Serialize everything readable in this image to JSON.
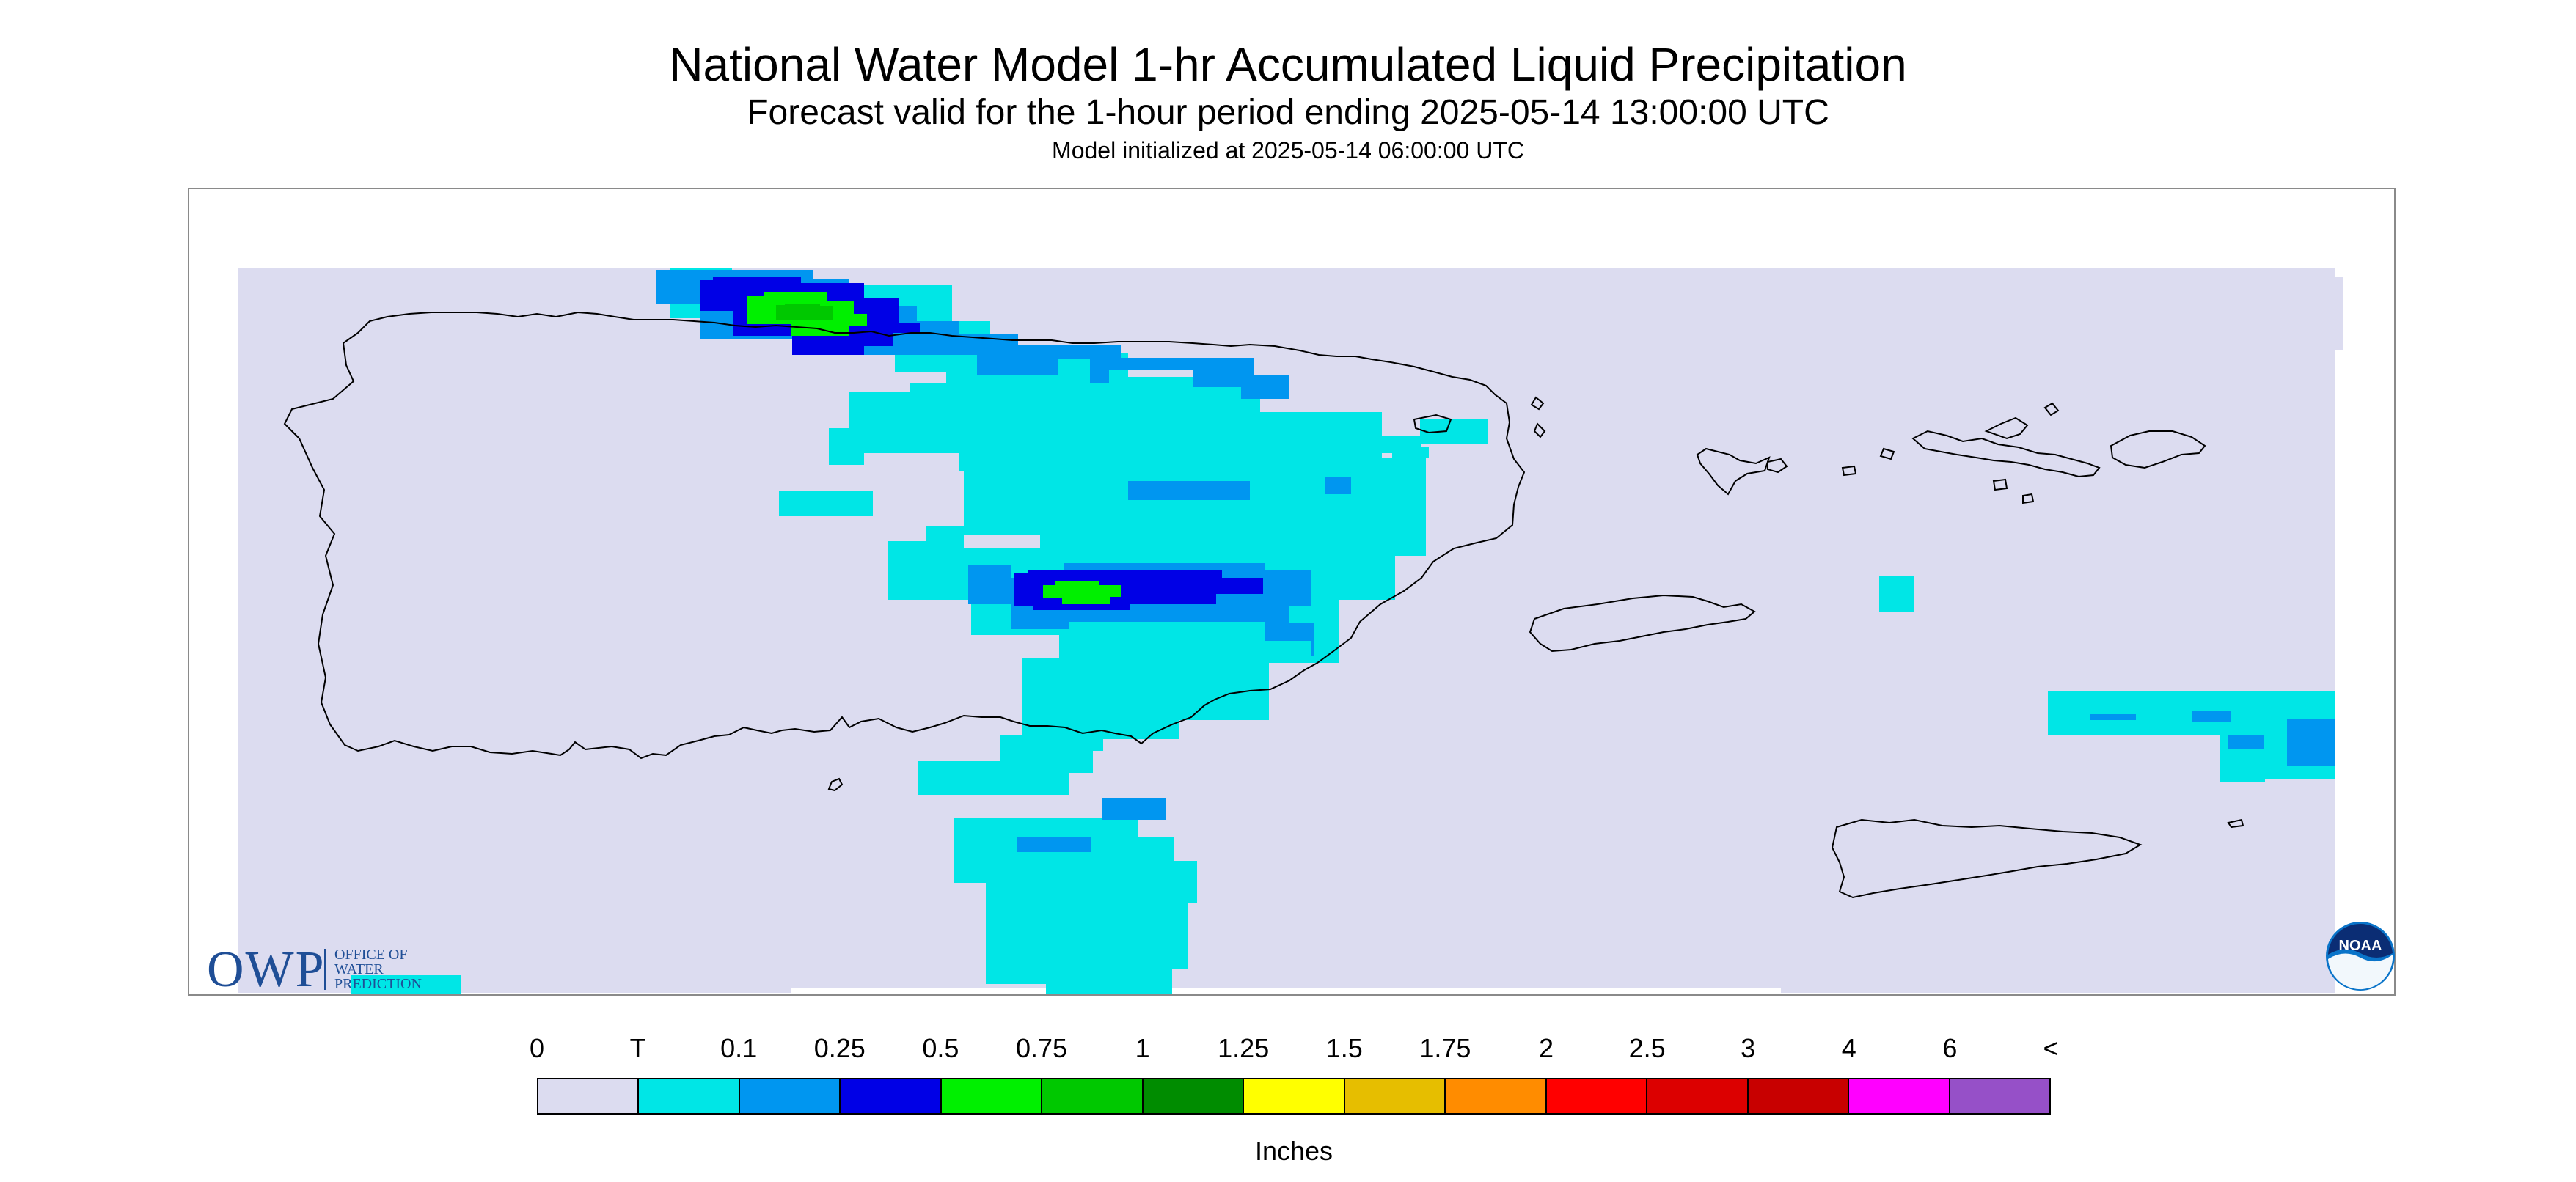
{
  "header": {
    "title": "National Water Model 1-hr Accumulated Liquid Precipitation",
    "subtitle": "Forecast valid for the 1-hour period ending 2025-05-14 13:00:00 UTC",
    "init": "Model initialized at 2025-05-14 06:00:00 UTC"
  },
  "logos": {
    "owp": {
      "big": "OWP",
      "line1": "OFFICE OF",
      "line2": "WATER",
      "line3": "PREDICTION"
    },
    "noaa": "NOAA"
  },
  "legend": {
    "labels": [
      "0",
      "T",
      "0.1",
      "0.25",
      "0.5",
      "0.75",
      "1",
      "1.25",
      "1.5",
      "1.75",
      "2",
      "2.5",
      "3",
      "4",
      "6",
      "<"
    ],
    "colors": [
      "#dcdcf0",
      "#00e6e6",
      "#0096f0",
      "#0000e6",
      "#00f000",
      "#00c800",
      "#008c00",
      "#ffff00",
      "#e6be00",
      "#ff8c00",
      "#ff0000",
      "#dc0000",
      "#c80000",
      "#ff00ff",
      "#9650c8"
    ],
    "units": "Inches"
  },
  "colors": {
    "background_zero": "#dcdcf0",
    "trace": "#00e6e6",
    "light": "#0096f0",
    "moderate": "#0000e6",
    "heavy": "#00f000",
    "heavier": "#00c800",
    "coastline": "#000000"
  }
}
